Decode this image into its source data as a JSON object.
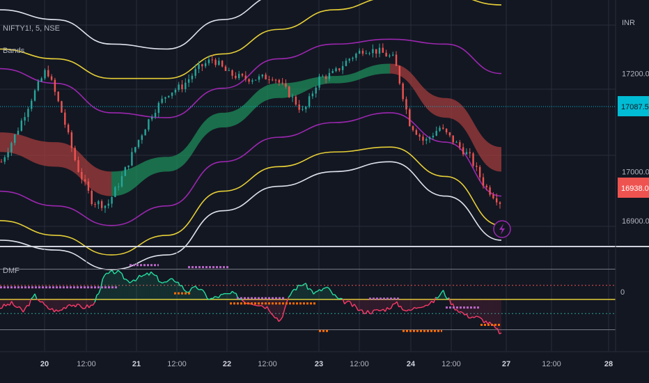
{
  "header": {
    "symbol": "NIFTY1!, 5, NSE",
    "indicator": "Bands",
    "currency": "INR"
  },
  "price_tags": {
    "current": {
      "label": "17087.50",
      "color": "#00bcd4",
      "text_color": "#131722"
    },
    "last": {
      "label": "16938.00",
      "color": "#ef5350",
      "text_color": "#ffffff"
    }
  },
  "oscillator": {
    "title": "DMF",
    "zero_label": "0"
  },
  "icons": {
    "flash": "lightning-icon"
  },
  "colors": {
    "background": "#131722",
    "grid": "#2a2e39",
    "white_band": "#e0e3eb",
    "yellow_band": "#e6cf37",
    "purple_band": "#9c27b0",
    "green_fill": "#1e8c5a",
    "red_fill": "#a23c3c",
    "candle_up": "#26a69a",
    "candle_down": "#ef5350",
    "osc_up": "#26e0a0",
    "osc_down": "#ff3b6b",
    "orange_marks": "#ff6d00",
    "purple_marks": "#ba68c8",
    "crosshair": "#00bcd4"
  },
  "chart_data": [
    {
      "type": "line",
      "title": "",
      "y_axis": {
        "ticks": [
          {
            "value": 17200,
            "label": "17200.00"
          },
          {
            "value": 17000,
            "label": "17000.00"
          },
          {
            "value": 16900,
            "label": "16900.00"
          }
        ],
        "range": [
          16850,
          17350
        ]
      },
      "x_axis": {
        "ticks": [
          {
            "label": "20",
            "bold": true
          },
          {
            "label": "12:00",
            "bold": false
          },
          {
            "label": "21",
            "bold": true
          },
          {
            "label": "12:00",
            "bold": false
          },
          {
            "label": "22",
            "bold": true
          },
          {
            "label": "12:00",
            "bold": false
          },
          {
            "label": "23",
            "bold": true
          },
          {
            "label": "12:00",
            "bold": false
          },
          {
            "label": "24",
            "bold": true
          },
          {
            "label": "12:00",
            "bold": false
          },
          {
            "label": "27",
            "bold": true
          },
          {
            "label": "12:00",
            "bold": false
          },
          {
            "label": "28",
            "bold": true
          }
        ]
      },
      "price_samples": [
        17020,
        17080,
        17150,
        17210,
        17120,
        17010,
        16940,
        16930,
        16990,
        17060,
        17120,
        17160,
        17175,
        17210,
        17230,
        17200,
        17190,
        17190,
        17195,
        17160,
        17120,
        17190,
        17200,
        17230,
        17250,
        17245,
        17230,
        17100,
        17060,
        17090,
        17060,
        17030,
        16970,
        16938
      ],
      "bands": {
        "upper_white": [
          17330,
          17310,
          17260,
          17250,
          17310,
          17360,
          17400,
          17420,
          17430,
          17440
        ],
        "upper_yellow": [
          17250,
          17230,
          17190,
          17190,
          17240,
          17290,
          17330,
          17355,
          17360,
          17340
        ],
        "upper_purple": [
          17210,
          17180,
          17120,
          17110,
          17170,
          17230,
          17260,
          17270,
          17260,
          17200
        ],
        "basis_high": [
          17080,
          17060,
          17000,
          17030,
          17120,
          17180,
          17195,
          17220,
          17150,
          17050
        ],
        "basis_low": [
          17040,
          17010,
          16950,
          17000,
          17090,
          17150,
          17180,
          17200,
          17110,
          17000
        ],
        "lower_purple": [
          16960,
          16930,
          16890,
          16930,
          17020,
          17070,
          17100,
          17120,
          17060,
          16950
        ],
        "lower_yellow": [
          16900,
          16870,
          16830,
          16870,
          16960,
          17010,
          17040,
          17050,
          16990,
          16890
        ],
        "lower_white": [
          16860,
          16840,
          16800,
          16830,
          16920,
          16970,
          17000,
          17020,
          16950,
          16860
        ]
      }
    },
    {
      "type": "line",
      "title": "DMF",
      "y_axis": {
        "ticks": [
          {
            "value": 0,
            "label": "0"
          }
        ],
        "range": [
          -1,
          1
        ]
      },
      "levels": [
        0.75,
        0.35,
        0,
        -0.35,
        -0.75
      ],
      "dmf": [
        -0.2,
        -0.1,
        -0.3,
        0.1,
        -0.2,
        -0.3,
        -0.1,
        -0.2,
        -0.15,
        0.6,
        0.7,
        0.45,
        0.55,
        0.65,
        0.4,
        0.5,
        0.2,
        0.3,
        0.0,
        0.1,
        0.15,
        -0.05,
        -0.1,
        -0.2,
        -0.55,
        0.2,
        0.4,
        0.15,
        0.3,
        0.0,
        -0.1,
        -0.3,
        -0.3,
        -0.25,
        -0.1,
        -0.3,
        -0.15,
        -0.1,
        0.2,
        -0.2,
        -0.4,
        -0.45,
        -0.6,
        -0.85
      ]
    }
  ]
}
